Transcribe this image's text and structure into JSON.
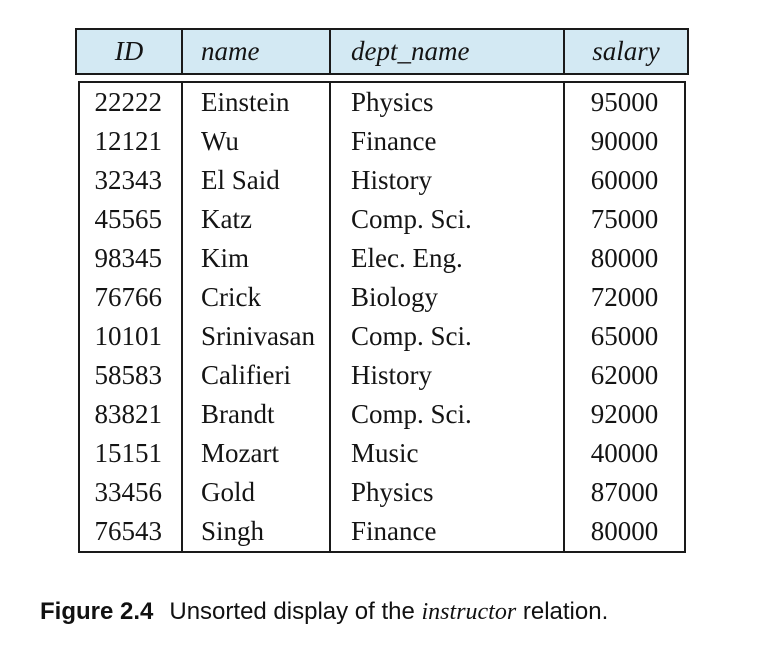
{
  "figure": {
    "colors": {
      "header_bg": "#d3e9f3",
      "border": "#1a1a1a",
      "text": "#141414",
      "background": "#ffffff"
    },
    "table": {
      "columns": [
        {
          "label": "ID"
        },
        {
          "label": "name"
        },
        {
          "label": "dept_name"
        },
        {
          "label": "salary"
        }
      ],
      "rows": [
        {
          "id": "22222",
          "name": "Einstein",
          "dept_name": "Physics",
          "salary": "95000"
        },
        {
          "id": "12121",
          "name": "Wu",
          "dept_name": "Finance",
          "salary": "90000"
        },
        {
          "id": "32343",
          "name": "El Said",
          "dept_name": "History",
          "salary": "60000"
        },
        {
          "id": "45565",
          "name": "Katz",
          "dept_name": "Comp. Sci.",
          "salary": "75000"
        },
        {
          "id": "98345",
          "name": "Kim",
          "dept_name": "Elec. Eng.",
          "salary": "80000"
        },
        {
          "id": "76766",
          "name": "Crick",
          "dept_name": "Biology",
          "salary": "72000"
        },
        {
          "id": "10101",
          "name": "Srinivasan",
          "dept_name": "Comp. Sci.",
          "salary": "65000"
        },
        {
          "id": "58583",
          "name": "Califieri",
          "dept_name": "History",
          "salary": "62000"
        },
        {
          "id": "83821",
          "name": "Brandt",
          "dept_name": "Comp. Sci.",
          "salary": "92000"
        },
        {
          "id": "15151",
          "name": "Mozart",
          "dept_name": "Music",
          "salary": "40000"
        },
        {
          "id": "33456",
          "name": "Gold",
          "dept_name": "Physics",
          "salary": "87000"
        },
        {
          "id": "76543",
          "name": "Singh",
          "dept_name": "Finance",
          "salary": "80000"
        }
      ]
    },
    "caption": {
      "label": "Figure 2.4",
      "text_before": "Unsorted display of the ",
      "emphasis": "instructor",
      "text_after": " relation."
    }
  }
}
